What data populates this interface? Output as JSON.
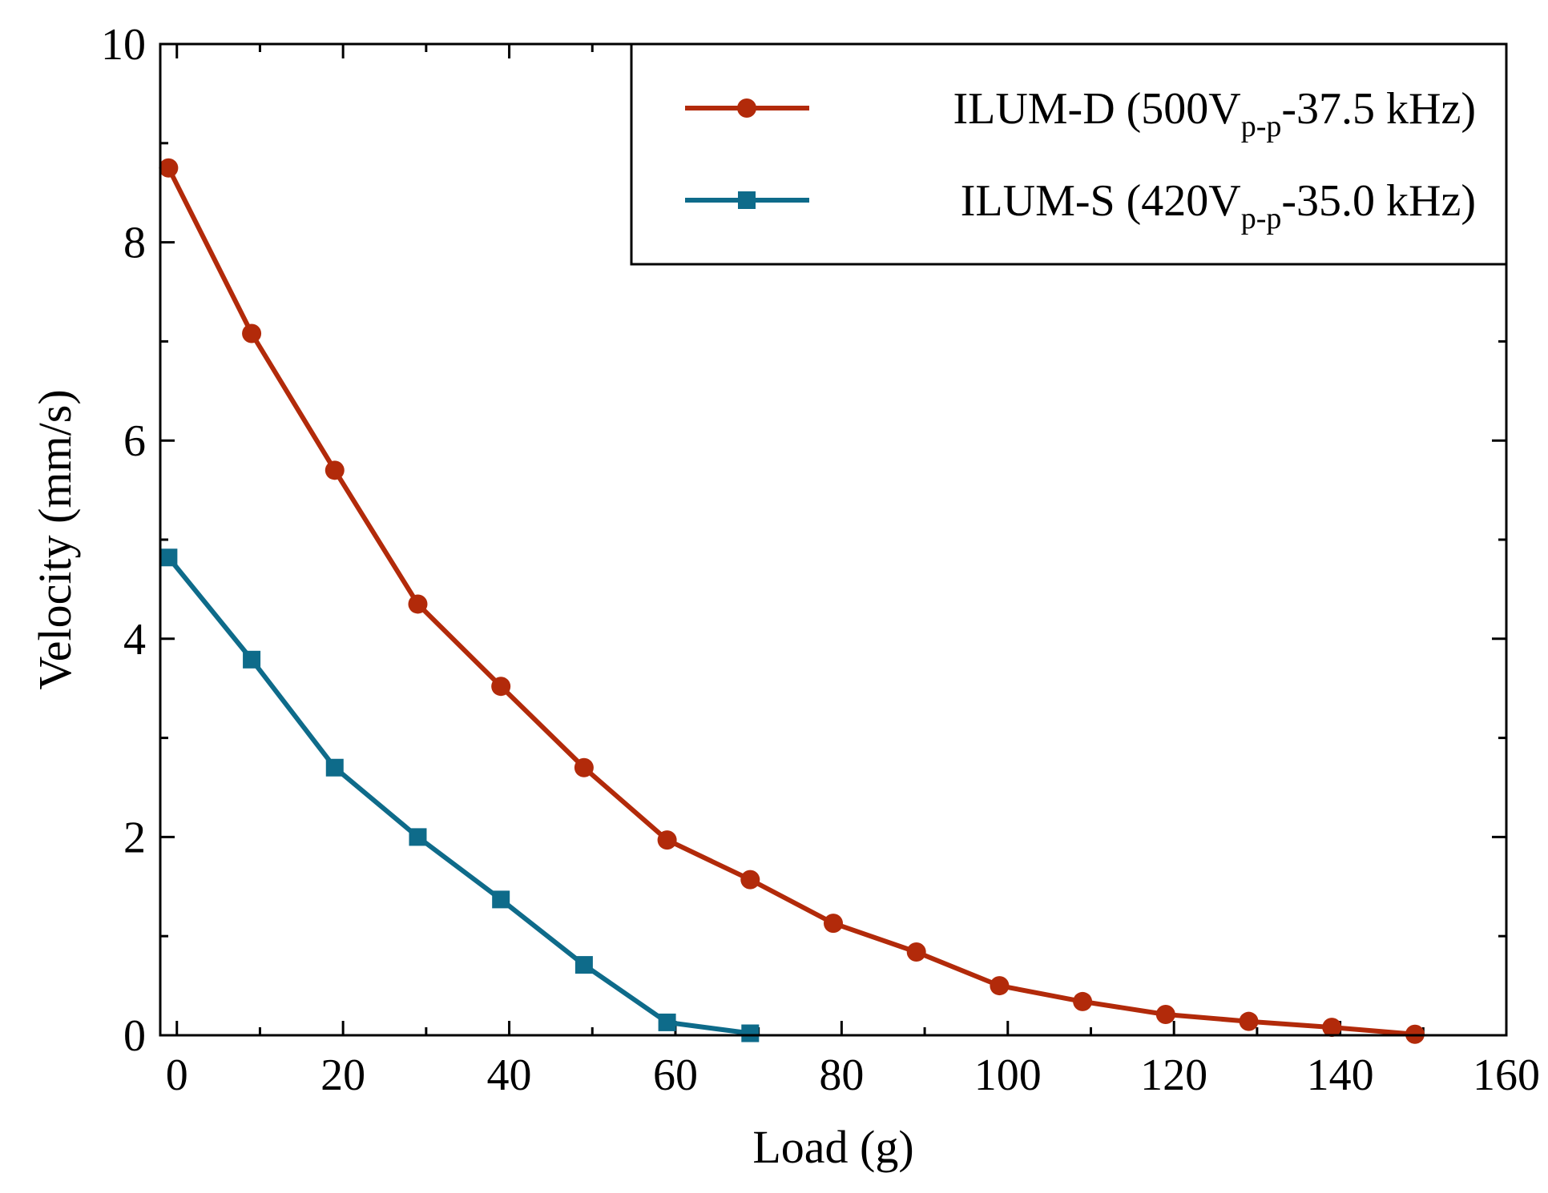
{
  "chart_data": {
    "type": "line",
    "title": "",
    "xlabel": "Load (g)",
    "ylabel": "Velocity (mm/s)",
    "xlim": [
      -2,
      160
    ],
    "ylim": [
      0,
      10
    ],
    "xticks": [
      0,
      20,
      40,
      60,
      80,
      100,
      120,
      140,
      160
    ],
    "yticks": [
      0,
      2,
      4,
      6,
      8,
      10
    ],
    "legend_position": "top-right",
    "series": [
      {
        "name": "ILUM-D (500Vp-p-37.5 kHz)",
        "legend_main": "ILUM-D (500V",
        "legend_sub": "p-p",
        "legend_tail": "-37.5 kHz)",
        "color": "#b22a0a",
        "marker": "circle",
        "x": [
          -1,
          9,
          19,
          29,
          39,
          49,
          59,
          69,
          79,
          89,
          99,
          109,
          119,
          129,
          139,
          149
        ],
        "y": [
          8.75,
          7.08,
          5.7,
          4.35,
          3.52,
          2.7,
          1.97,
          1.57,
          1.13,
          0.84,
          0.5,
          0.34,
          0.21,
          0.14,
          0.08,
          0.01
        ]
      },
      {
        "name": "ILUM-S (420Vp-p-35.0 kHz)",
        "legend_main": "ILUM-S (420V",
        "legend_sub": "p-p",
        "legend_tail": "-35.0 kHz)",
        "color": "#0e6b8a",
        "marker": "square",
        "x": [
          -1,
          9,
          19,
          29,
          39,
          49,
          59,
          69
        ],
        "y": [
          4.82,
          3.79,
          2.7,
          2.0,
          1.37,
          0.71,
          0.13,
          0.02
        ]
      }
    ]
  }
}
